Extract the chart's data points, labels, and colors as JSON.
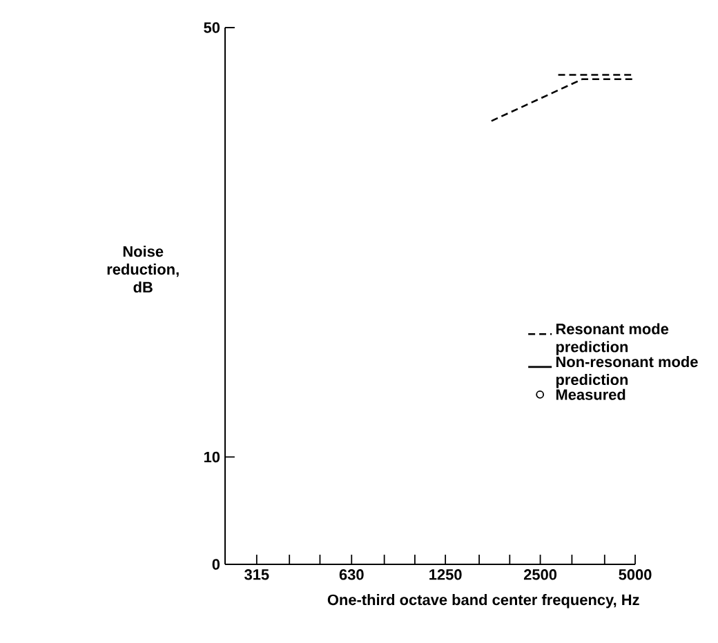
{
  "chart_data": {
    "type": "line",
    "xlabel": "One-third octave band center frequency, Hz",
    "ylabel": "Noise reduction, dB",
    "log": "x",
    "xlim": [
      250,
      5000
    ],
    "ylim": [
      0,
      50
    ],
    "xticks": [
      315,
      {
        "value": 400,
        "label": null
      },
      {
        "value": 500,
        "label": null
      },
      630,
      {
        "value": 800,
        "label": null
      },
      {
        "value": 1000,
        "label": null
      },
      1250,
      {
        "value": 1600,
        "label": null
      },
      {
        "value": 2000,
        "label": null
      },
      2500,
      {
        "value": 3150,
        "label": null
      },
      {
        "value": 4000,
        "label": null
      },
      5000
    ],
    "yticks": [
      0,
      10,
      50
    ],
    "legend": "right",
    "series": [
      {
        "name": "Resonant mode prediction",
        "line_style": "dashed",
        "color": "#000000",
        "x": [
          1750,
          3400,
          5000
        ],
        "values": [
          41.3,
          45.2,
          45.2
        ]
      },
      {
        "name": "Non-resonant mode prediction",
        "line_style": "solid",
        "color": "#000000"
      },
      {
        "name": "Measured",
        "type": "scatter",
        "marker": "circle",
        "color": "#000000"
      },
      {
        "line_style": "dashed",
        "color": "#000000",
        "x": [
          2850,
          5000
        ],
        "values": [
          45.6,
          45.6
        ]
      }
    ]
  }
}
